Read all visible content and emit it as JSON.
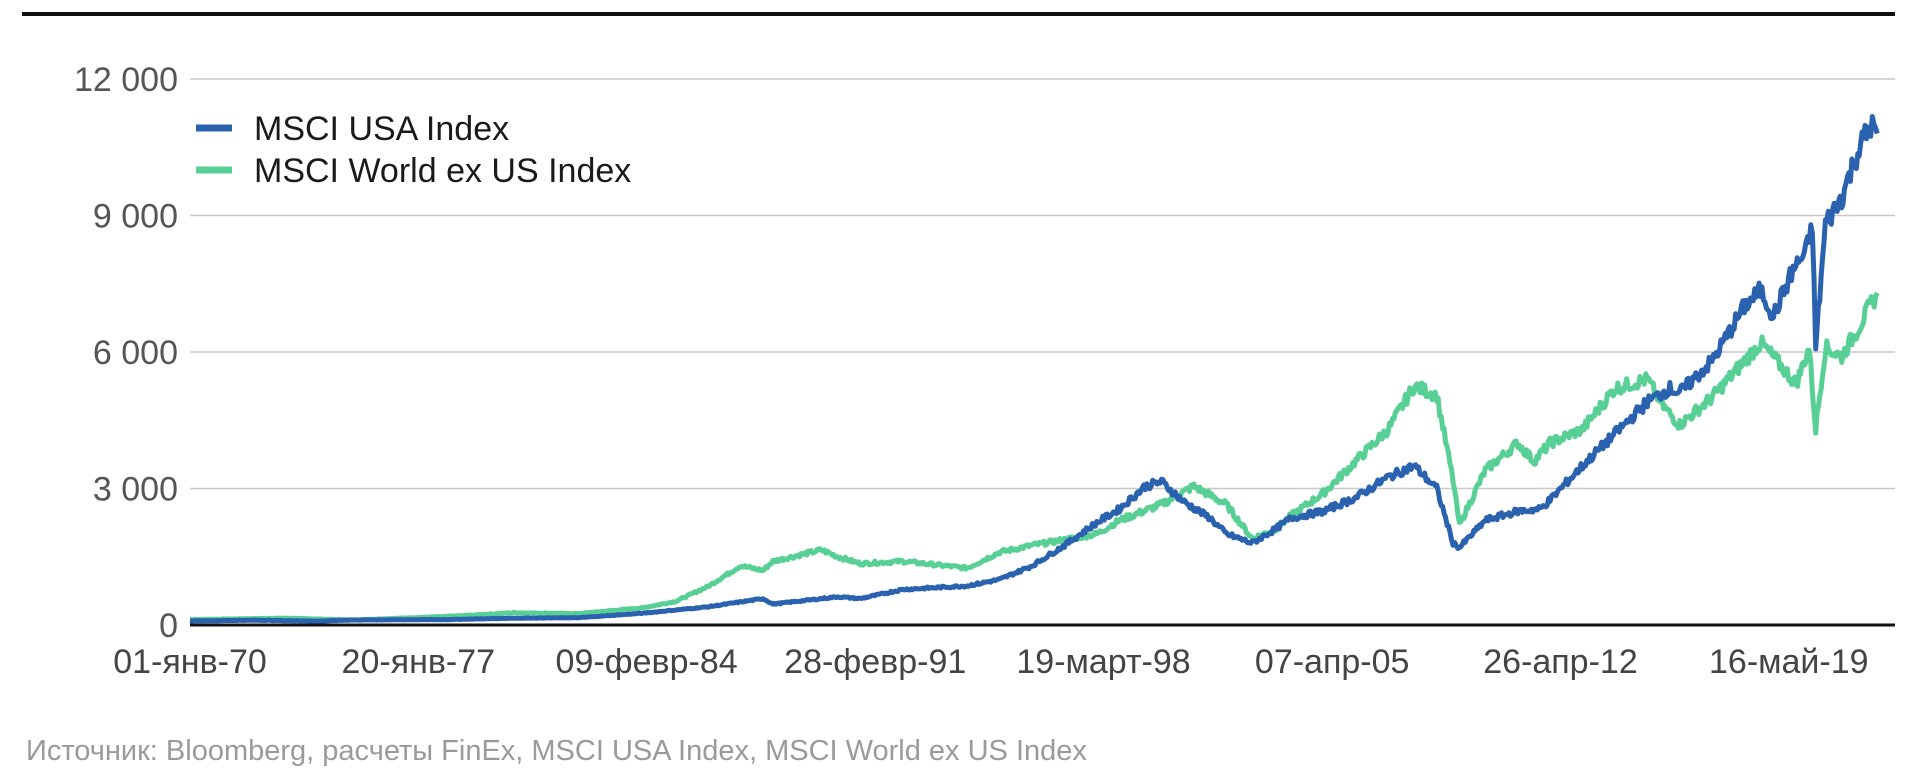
{
  "chart_data": {
    "type": "line",
    "title": "",
    "xlabel": "",
    "ylabel": "",
    "ylim": [
      0,
      12000
    ],
    "yticks": [
      0,
      3000,
      6000,
      9000,
      12000
    ],
    "ytick_labels": [
      "0",
      "3 000",
      "6 000",
      "9 000",
      "12 000"
    ],
    "xlim": [
      1970.0,
      2022.65
    ],
    "xticks": [
      1970.0,
      1977.05,
      1984.1,
      1991.16,
      1998.21,
      2005.27,
      2012.32,
      2019.37
    ],
    "xtick_labels": [
      "01-янв-70",
      "20-янв-77",
      "09-февр-84",
      "28-февр-91",
      "19-март-98",
      "07-апр-05",
      "26-апр-12",
      "16-май-19"
    ],
    "grid": true,
    "legend_position": "top-left",
    "series": [
      {
        "name": "MSCI USA Index",
        "color": "#2b62b0",
        "x": [
          1970.0,
          1972.0,
          1974.0,
          1975.0,
          1978.0,
          1980.0,
          1982.0,
          1984.0,
          1986.0,
          1987.7,
          1988.0,
          1990.0,
          1990.7,
          1992.0,
          1994.0,
          1995.0,
          1996.0,
          1997.0,
          1998.0,
          1998.7,
          1999.5,
          2000.0,
          2000.7,
          2001.5,
          2002.0,
          2002.8,
          2003.5,
          2004.0,
          2005.0,
          2006.0,
          2007.0,
          2007.8,
          2008.5,
          2009.0,
          2009.2,
          2010.0,
          2011.0,
          2011.7,
          2012.0,
          2013.0,
          2014.0,
          2015.0,
          2015.7,
          2016.0,
          2017.0,
          2018.0,
          2018.5,
          2018.9,
          2019.5,
          2019.9,
          2020.1,
          2020.2,
          2020.5,
          2021.0,
          2021.5,
          2021.9,
          2022.1
        ],
        "values": [
          90,
          105,
          85,
          110,
          120,
          150,
          160,
          260,
          400,
          580,
          460,
          620,
          580,
          780,
          860,
          1000,
          1300,
          1750,
          2250,
          2550,
          3050,
          3150,
          2700,
          2350,
          2000,
          1800,
          2100,
          2350,
          2500,
          2800,
          3250,
          3500,
          3000,
          1800,
          1700,
          2300,
          2500,
          2550,
          2750,
          3500,
          4200,
          4900,
          5200,
          5100,
          5800,
          7000,
          7350,
          6800,
          7800,
          8200,
          8800,
          6100,
          8800,
          9400,
          10400,
          11000,
          10800
        ]
      },
      {
        "name": "MSCI World ex US Index",
        "color": "#58cf94",
        "x": [
          1970.0,
          1973.0,
          1975.0,
          1978.0,
          1980.0,
          1982.0,
          1984.0,
          1985.0,
          1986.0,
          1987.0,
          1987.7,
          1988.0,
          1989.5,
          1990.0,
          1990.7,
          1992.0,
          1994.0,
          1995.0,
          1996.0,
          1998.0,
          1998.7,
          2000.0,
          2001.0,
          2002.0,
          2002.8,
          2003.5,
          2004.0,
          2005.0,
          2006.0,
          2007.0,
          2007.8,
          2008.5,
          2009.0,
          2009.2,
          2010.0,
          2011.0,
          2011.5,
          2012.0,
          2013.0,
          2014.0,
          2015.0,
          2015.5,
          2016.0,
          2017.0,
          2018.0,
          2018.5,
          2019.0,
          2019.6,
          2020.0,
          2020.2,
          2020.5,
          2021.0,
          2021.5,
          2022.1
        ],
        "values": [
          120,
          150,
          110,
          190,
          270,
          250,
          380,
          520,
          850,
          1300,
          1200,
          1400,
          1650,
          1500,
          1350,
          1400,
          1250,
          1600,
          1750,
          2000,
          2300,
          2650,
          3050,
          2650,
          1900,
          2100,
          2400,
          2900,
          3600,
          4300,
          5250,
          5050,
          3200,
          2200,
          3400,
          4000,
          3600,
          4000,
          4300,
          5200,
          5400,
          4800,
          4400,
          5000,
          5800,
          6200,
          5800,
          5300,
          6100,
          4300,
          6100,
          5900,
          6500,
          7300
        ]
      }
    ],
    "source": "Источник: Bloomberg, расчеты FinEx, MSCI USA Index, MSCI World ex US Index"
  }
}
